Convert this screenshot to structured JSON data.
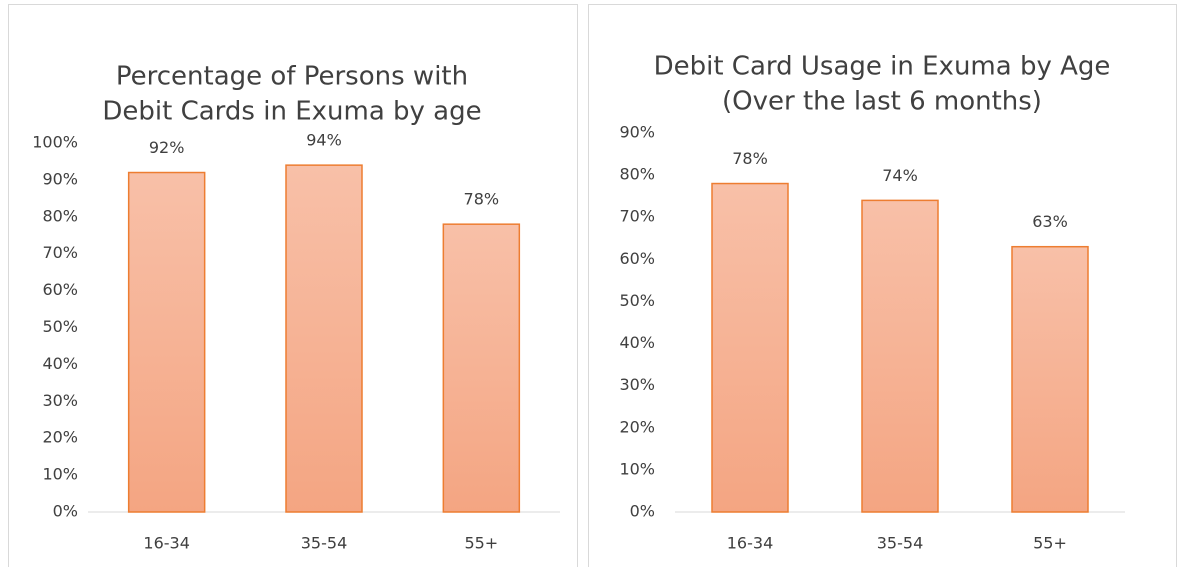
{
  "chart_data": [
    {
      "type": "bar",
      "title": [
        "Percentage of Persons with",
        "Debit Cards in Exuma by age"
      ],
      "categories": [
        "16-34",
        "35-54",
        "55+"
      ],
      "values": [
        92,
        94,
        78
      ],
      "value_labels": [
        "92%",
        "94%",
        "78%"
      ],
      "color": "#ed7d31",
      "ylim": [
        0,
        100
      ],
      "yticks": [
        {
          "value": 0,
          "label": "0%"
        },
        {
          "value": 10,
          "label": "10%"
        },
        {
          "value": 20,
          "label": "20%"
        },
        {
          "value": 30,
          "label": "30%"
        },
        {
          "value": 40,
          "label": "40%"
        },
        {
          "value": 50,
          "label": "50%"
        },
        {
          "value": 60,
          "label": "60%"
        },
        {
          "value": 70,
          "label": "70%"
        },
        {
          "value": 80,
          "label": "80%"
        },
        {
          "value": 90,
          "label": "90%"
        },
        {
          "value": 100,
          "label": "100%"
        }
      ]
    },
    {
      "type": "bar",
      "title": [
        "Debit Card Usage in Exuma by Age",
        "(Over the last 6 months)"
      ],
      "categories": [
        "16-34",
        "35-54",
        "55+"
      ],
      "values": [
        78,
        74,
        63
      ],
      "value_labels": [
        "78%",
        "74%",
        "63%"
      ],
      "color": "#ed7d31",
      "ylim": [
        0,
        90
      ],
      "yticks": [
        {
          "value": 0,
          "label": "0%"
        },
        {
          "value": 10,
          "label": "10%"
        },
        {
          "value": 20,
          "label": "20%"
        },
        {
          "value": 30,
          "label": "30%"
        },
        {
          "value": 40,
          "label": "40%"
        },
        {
          "value": 50,
          "label": "50%"
        },
        {
          "value": 60,
          "label": "60%"
        },
        {
          "value": 70,
          "label": "70%"
        },
        {
          "value": 80,
          "label": "80%"
        },
        {
          "value": 90,
          "label": "90%"
        }
      ]
    }
  ]
}
